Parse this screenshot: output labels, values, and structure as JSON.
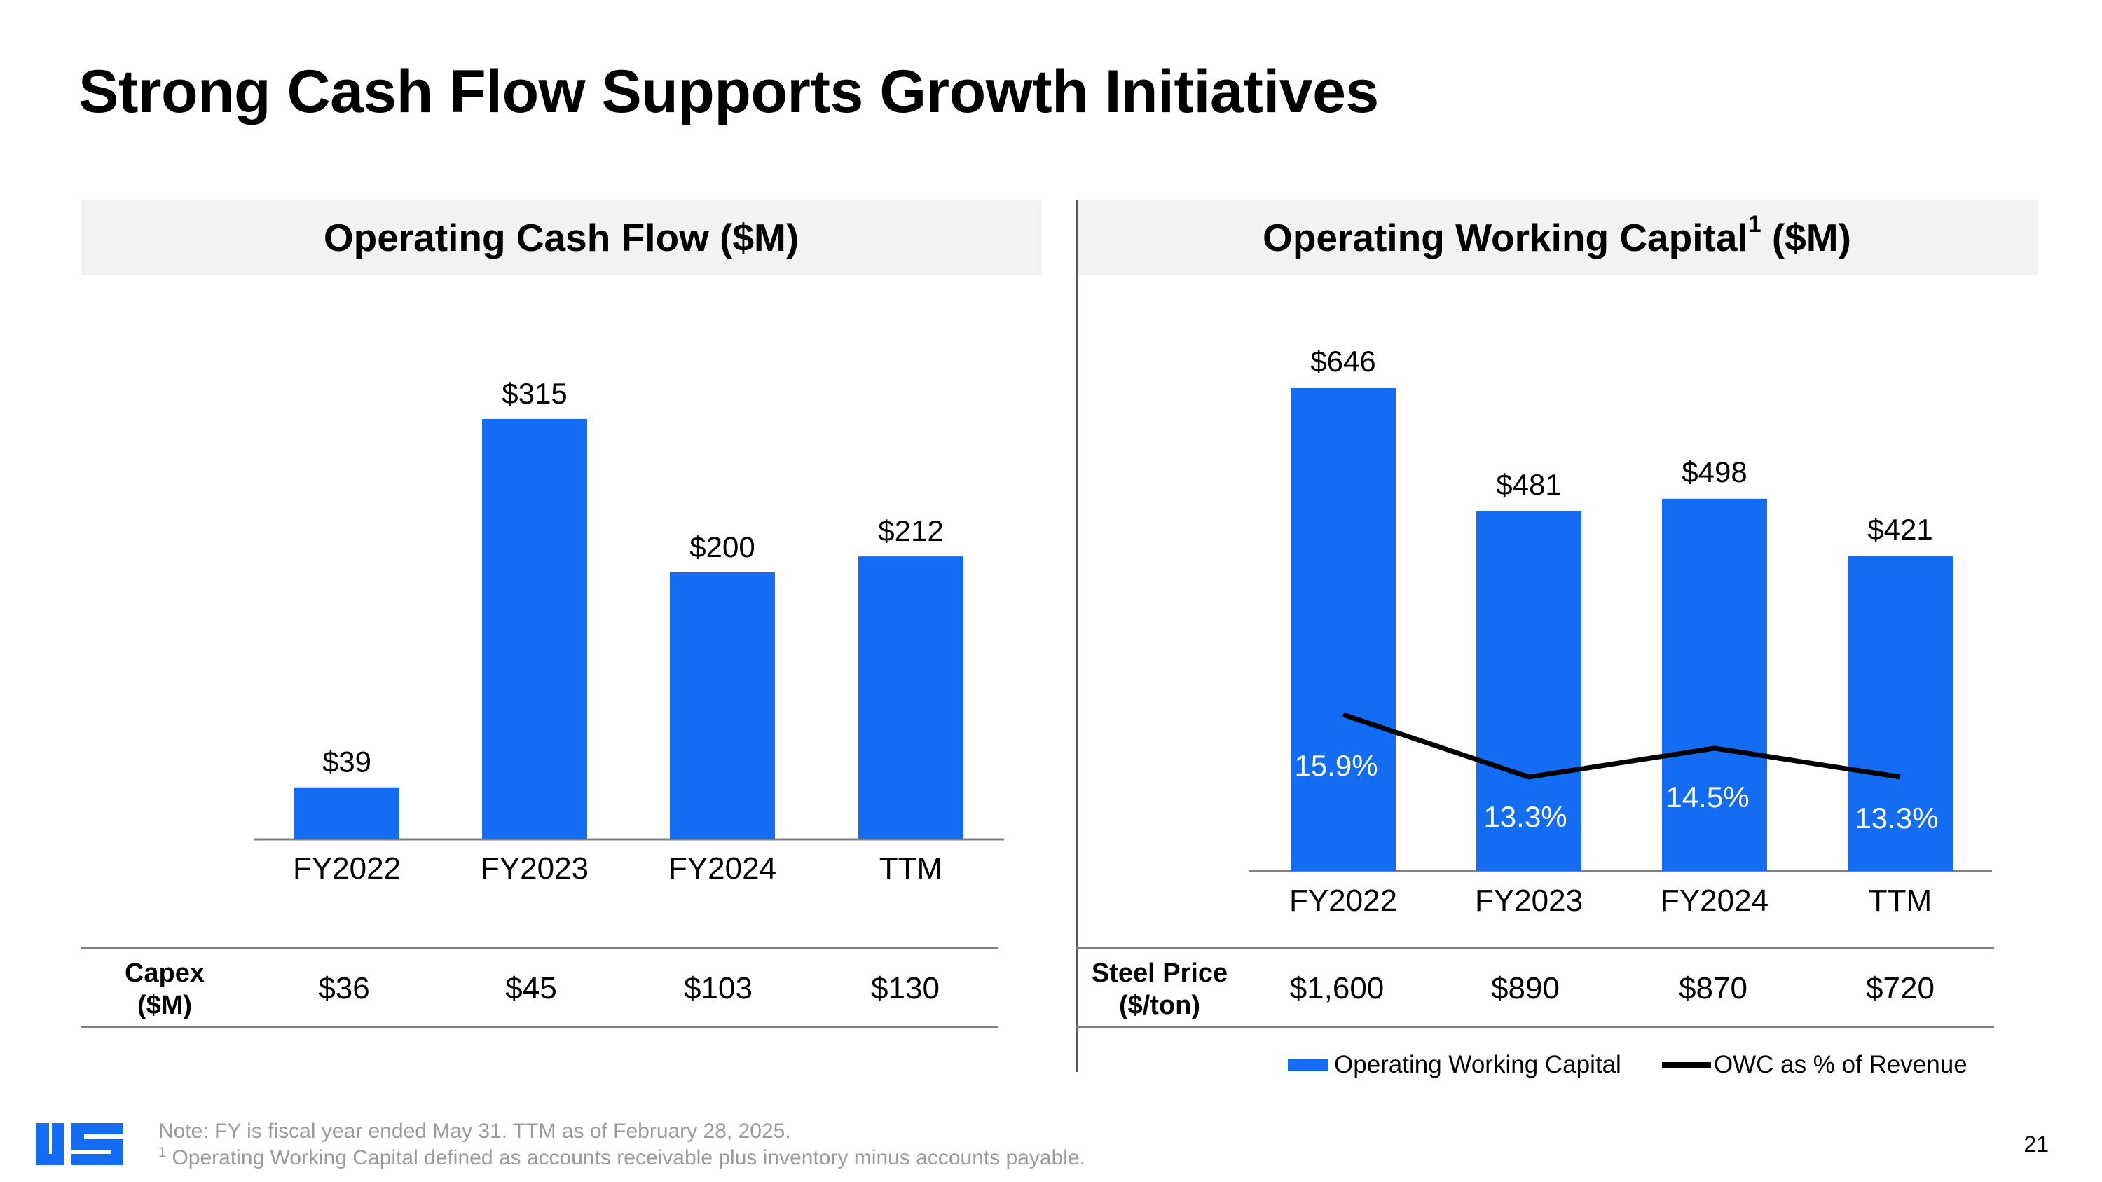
{
  "slide": {
    "title": "Strong Cash Flow Supports Growth Initiatives",
    "page_number": "21",
    "notes": [
      "Note: FY is fiscal year ended May 31. TTM as of February 28, 2025.",
      "Operating Working Capital defined as accounts receivable plus inventory minus accounts payable."
    ],
    "note_marker": "1",
    "logo_alt": "US",
    "colors": {
      "bar": "#136cf2",
      "line": "#000000",
      "header_bg": "#f2f2f2"
    }
  },
  "chart_data": [
    {
      "type": "bar",
      "title": "Operating Cash Flow ($M)",
      "categories": [
        "FY2022",
        "FY2023",
        "FY2024",
        "TTM"
      ],
      "values": [
        39,
        315,
        200,
        212
      ],
      "value_labels": [
        "$39",
        "$315",
        "$200",
        "$212"
      ],
      "ylim": [
        0,
        340
      ],
      "table": {
        "label": "Capex\n($M)",
        "values": [
          "$36",
          "$45",
          "$103",
          "$130"
        ]
      }
    },
    {
      "type": "bar",
      "title_main": "Operating Working Capital",
      "title_sup": "1",
      "title_suffix": " ($M)",
      "categories": [
        "FY2022",
        "FY2023",
        "FY2024",
        "TTM"
      ],
      "series": [
        {
          "name": "Operating Working Capital",
          "type": "bar",
          "values": [
            646,
            481,
            498,
            421
          ],
          "labels": [
            "$646",
            "$481",
            "$498",
            "$421"
          ]
        },
        {
          "name": "OWC as % of Revenue",
          "type": "line",
          "values": [
            15.9,
            13.3,
            14.5,
            13.3
          ],
          "labels": [
            "15.9%",
            "13.3%",
            "14.5%",
            "13.3%"
          ]
        }
      ],
      "ylim": [
        0,
        700
      ],
      "line_ylim": [
        0,
        24
      ],
      "table": {
        "label": "Steel Price\n($/ton)",
        "values": [
          "$1,600",
          "$890",
          "$870",
          "$720"
        ]
      },
      "legend": [
        "Operating Working Capital",
        "OWC as % of Revenue"
      ]
    }
  ]
}
